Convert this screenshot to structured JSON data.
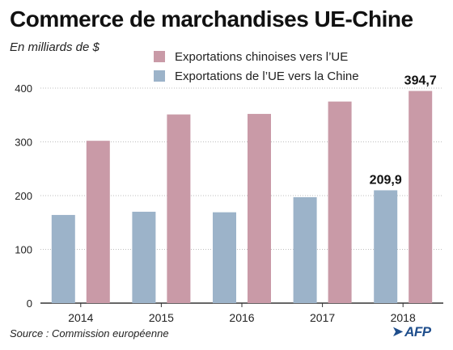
{
  "header": {
    "title": "Commerce de marchandises UE-Chine",
    "subtitle": "En milliards de $"
  },
  "footer": {
    "source": "Source : Commission européenne",
    "logo_text": "AFP"
  },
  "colors": {
    "china_exports": "#c99aa7",
    "eu_exports": "#9cb3c9",
    "grid": "#bdbdbd",
    "axis": "#333333"
  },
  "chart_data": {
    "type": "bar",
    "categories": [
      "2014",
      "2015",
      "2016",
      "2017",
      "2018"
    ],
    "series": [
      {
        "name": "Exportations chinoises vers l’UE",
        "values": [
          302,
          351,
          352,
          375,
          394.7
        ]
      },
      {
        "name": "Exportations de l’UE vers la Chine",
        "values": [
          164,
          170,
          169,
          197,
          209.9
        ]
      }
    ],
    "annotations": [
      {
        "series": 0,
        "category": "2018",
        "label": "394,7"
      },
      {
        "series": 1,
        "category": "2018",
        "label": "209,9"
      }
    ],
    "yticks": [
      "0",
      "100",
      "200",
      "300",
      "400"
    ],
    "ylim": [
      0,
      400
    ],
    "grid": true,
    "legend_position": "top"
  }
}
